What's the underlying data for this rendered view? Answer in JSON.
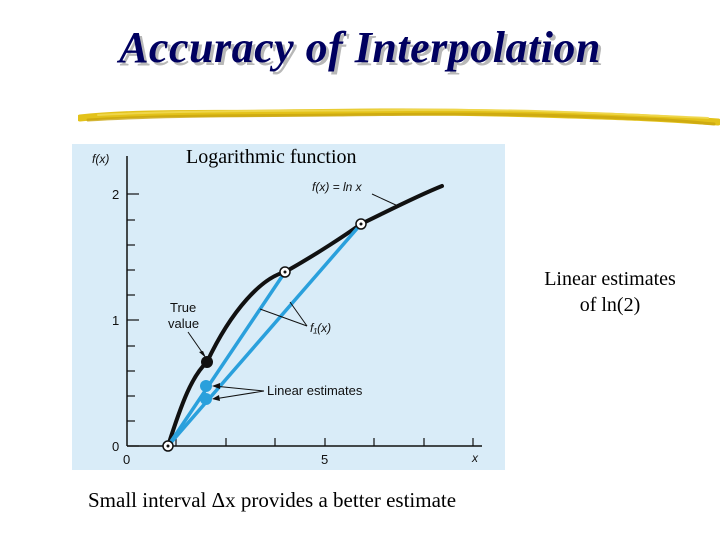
{
  "slide": {
    "title": "Accuracy of Interpolation",
    "caption": "Logarithmic function",
    "side_note_line1": "Linear estimates",
    "side_note_line2": "of ln(2)",
    "bottom_note": "Small interval Δx provides a better estimate"
  },
  "colors": {
    "title": "#000060",
    "underline": "#e3c21a",
    "panel": "#d9ecf8",
    "curve": "#111111",
    "estimate_lines": "#2aa0dc"
  },
  "figure": {
    "y_axis_label": "f(x)",
    "x_axis_label": "x",
    "x_tick_labels": [
      "0",
      "5"
    ],
    "y_tick_labels": [
      "0",
      "1",
      "2"
    ],
    "function_label": "f(x) = ln x",
    "true_value_label_line1": "True",
    "true_value_label_line2": "value",
    "linear_fn_label": "f₁(x)",
    "linear_estimates_label": "Linear estimates"
  }
}
